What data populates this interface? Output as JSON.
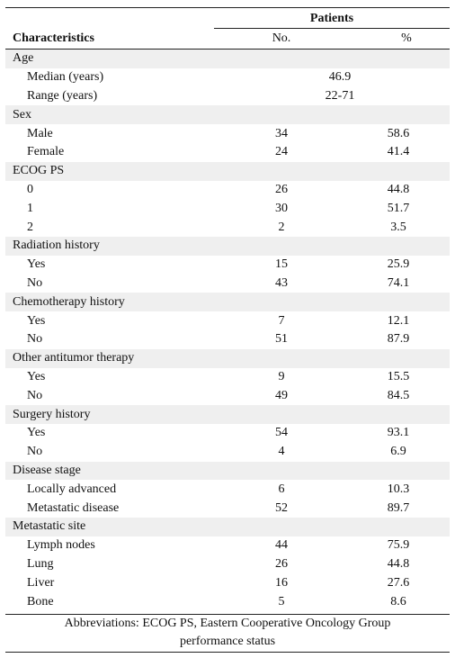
{
  "header": {
    "group": "Patients",
    "label": "Characteristics",
    "no": "No.",
    "pct": "%"
  },
  "groups": [
    {
      "label": "Age",
      "rows": [
        {
          "label": "Median (years)",
          "value": "46.9"
        },
        {
          "label": "Range (years)",
          "value": "22-71"
        }
      ]
    },
    {
      "label": "Sex",
      "rows": [
        {
          "label": "Male",
          "no": 34,
          "pct": 58.6
        },
        {
          "label": "Female",
          "no": 24,
          "pct": 41.4
        }
      ]
    },
    {
      "label": "ECOG PS",
      "rows": [
        {
          "label": "0",
          "no": 26,
          "pct": 44.8
        },
        {
          "label": "1",
          "no": 30,
          "pct": 51.7
        },
        {
          "label": "2",
          "no": 2,
          "pct": 3.5
        }
      ]
    },
    {
      "label": "Radiation history",
      "rows": [
        {
          "label": "Yes",
          "no": 15,
          "pct": 25.9
        },
        {
          "label": "No",
          "no": 43,
          "pct": 74.1
        }
      ]
    },
    {
      "label": "Chemotherapy history",
      "rows": [
        {
          "label": "Yes",
          "no": 7,
          "pct": 12.1
        },
        {
          "label": "No",
          "no": 51,
          "pct": 87.9
        }
      ]
    },
    {
      "label": "Other antitumor therapy",
      "rows": [
        {
          "label": "Yes",
          "no": 9,
          "pct": 15.5
        },
        {
          "label": "No",
          "no": 49,
          "pct": 84.5
        }
      ]
    },
    {
      "label": "Surgery history",
      "rows": [
        {
          "label": "Yes",
          "no": 54,
          "pct": 93.1
        },
        {
          "label": "No",
          "no": 4,
          "pct": 6.9
        }
      ]
    },
    {
      "label": "Disease stage",
      "rows": [
        {
          "label": "Locally advanced",
          "no": 6,
          "pct": 10.3
        },
        {
          "label": "Metastatic disease",
          "no": 52,
          "pct": 89.7
        }
      ]
    },
    {
      "label": "Metastatic site",
      "rows": [
        {
          "label": "Lymph nodes",
          "no": 44,
          "pct": 75.9
        },
        {
          "label": "Lung",
          "no": 26,
          "pct": 44.8
        },
        {
          "label": "Liver",
          "no": 16,
          "pct": 27.6
        },
        {
          "label": "Bone",
          "no": 5,
          "pct": 8.6
        }
      ]
    }
  ],
  "footnote": [
    "Abbreviations: ECOG PS, Eastern Cooperative Oncology Group",
    "performance status"
  ]
}
